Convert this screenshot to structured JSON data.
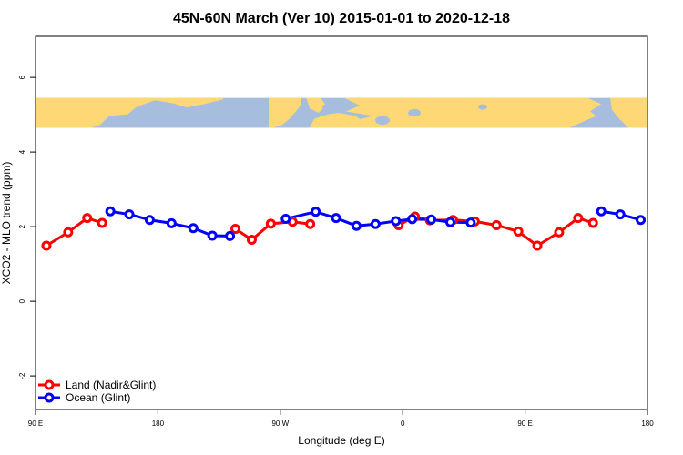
{
  "chart_data": {
    "type": "line",
    "title": "45N-60N March (Ver 10)   2015-01-01 to 2020-12-18",
    "xlabel": "Longitude (deg E)",
    "ylabel": "XCO2 - MLO trend (ppm)",
    "x_axis": {
      "range": [
        90,
        540
      ],
      "ticks": [
        {
          "value": 90,
          "label": "90 E"
        },
        {
          "value": 180,
          "label": "180"
        },
        {
          "value": 270,
          "label": "90 W"
        },
        {
          "value": 360,
          "label": "0"
        },
        {
          "value": 450,
          "label": "90 E"
        },
        {
          "value": 540,
          "label": "180"
        }
      ]
    },
    "y_axis": {
      "range": [
        -2.9,
        7.1
      ],
      "ticks": [
        {
          "value": -2,
          "label": "-2"
        },
        {
          "value": 0,
          "label": "0"
        },
        {
          "value": 2,
          "label": "2"
        },
        {
          "value": 4,
          "label": "4"
        },
        {
          "value": 6,
          "label": "6"
        }
      ]
    },
    "grid": false,
    "legend_position": "bottom-left",
    "map_strip": {
      "y_range": [
        4.65,
        5.45
      ],
      "land_color": "#fdd875",
      "ocean_color": "#a7bddd"
    },
    "series": [
      {
        "name": "Land (Nadir&Glint)",
        "color": "#ff0000",
        "segments": [
          [
            [
              98,
              1.49
            ],
            [
              114,
              1.85
            ],
            [
              128,
              2.23
            ],
            [
              139,
              2.1
            ]
          ],
          [
            [
              237,
              1.94
            ],
            [
              249,
              1.65
            ],
            [
              263,
              2.08
            ],
            [
              279,
              2.13
            ],
            [
              292,
              2.07
            ]
          ],
          [
            [
              357,
              2.04
            ],
            [
              369,
              2.27
            ],
            [
              380,
              2.17
            ],
            [
              397,
              2.18
            ],
            [
              413,
              2.14
            ],
            [
              429,
              2.04
            ],
            [
              445,
              1.87
            ],
            [
              459,
              1.49
            ],
            [
              475,
              1.85
            ],
            [
              489,
              2.23
            ],
            [
              500,
              2.1
            ]
          ]
        ]
      },
      {
        "name": "Ocean (Glint)",
        "color": "#0000ff",
        "segments": [
          [
            [
              145,
              2.41
            ],
            [
              159,
              2.33
            ],
            [
              174,
              2.18
            ],
            [
              190,
              2.09
            ],
            [
              206,
              1.96
            ],
            [
              220,
              1.76
            ],
            [
              233,
              1.75
            ]
          ],
          [
            [
              274,
              2.21
            ],
            [
              296,
              2.4
            ],
            [
              311,
              2.23
            ],
            [
              326,
              2.02
            ],
            [
              340,
              2.07
            ],
            [
              355,
              2.15
            ],
            [
              367,
              2.2
            ],
            [
              381,
              2.19
            ],
            [
              395,
              2.12
            ],
            [
              410,
              2.11
            ]
          ],
          [
            [
              506,
              2.41
            ],
            [
              520,
              2.33
            ],
            [
              535,
              2.18
            ]
          ]
        ]
      }
    ]
  }
}
